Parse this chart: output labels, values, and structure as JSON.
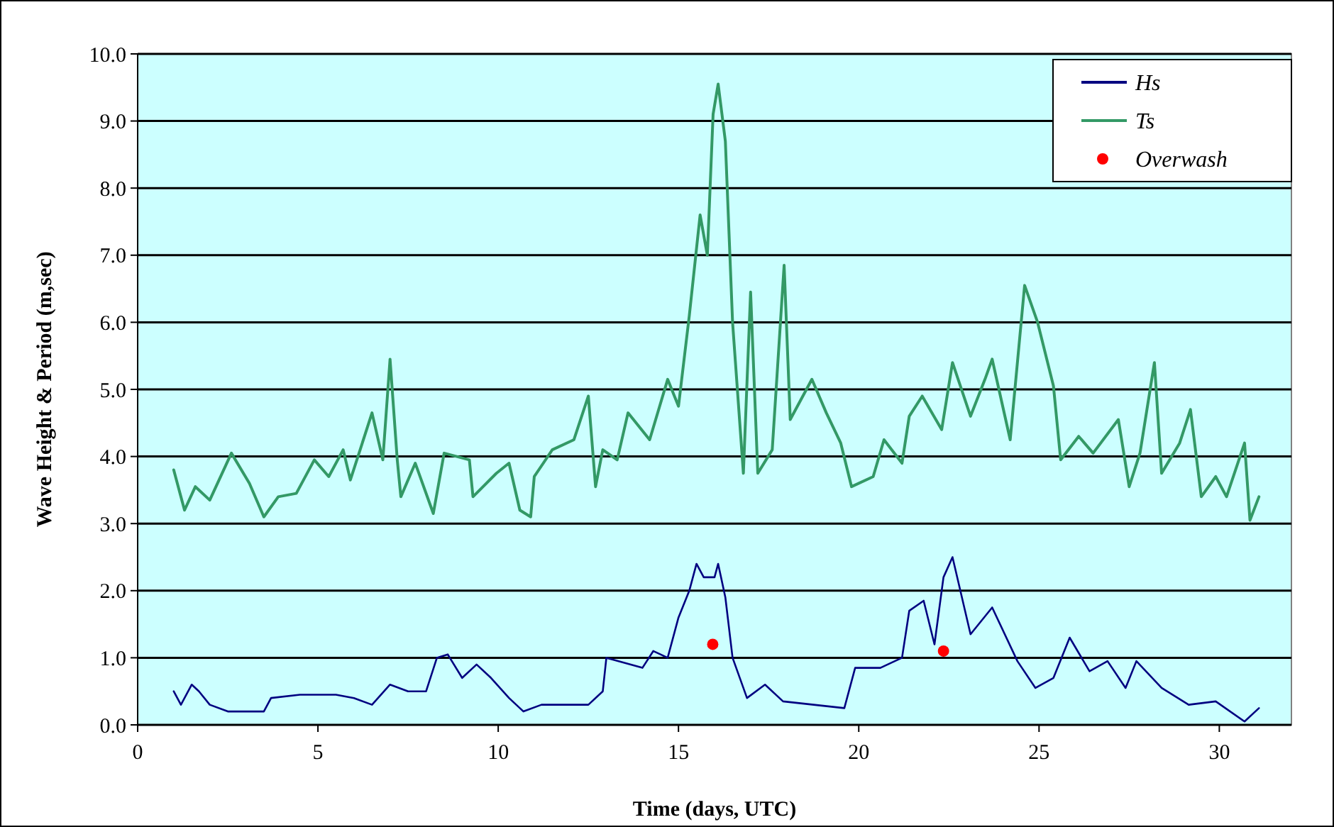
{
  "chart_data": {
    "type": "line",
    "xlabel": "Time (days, UTC)",
    "ylabel": "Wave Height & Period (m,sec)",
    "xlim": [
      0,
      32
    ],
    "xticks": [
      0,
      5,
      10,
      15,
      20,
      25,
      30
    ],
    "ylim": [
      0,
      10
    ],
    "yticks": [
      {
        "value": 0,
        "label": "0.0"
      },
      {
        "value": 1,
        "label": "1.0"
      },
      {
        "value": 2,
        "label": "2.0"
      },
      {
        "value": 3,
        "label": "3.0"
      },
      {
        "value": 4,
        "label": "4.0"
      },
      {
        "value": 5,
        "label": "5.0"
      },
      {
        "value": 6,
        "label": "6.0"
      },
      {
        "value": 7,
        "label": "7.0"
      },
      {
        "value": 8,
        "label": "8.0"
      },
      {
        "value": 9,
        "label": "9.0"
      },
      {
        "value": 10,
        "label": "10.0"
      }
    ],
    "grid": "y",
    "legend": "top right",
    "marker": "none",
    "line_style": "solid",
    "series": [
      {
        "name": "Hs",
        "color": "#000080",
        "x": [
          1.0,
          1.2,
          1.5,
          1.7,
          2.0,
          2.5,
          3.5,
          3.7,
          4.5,
          5.5,
          6.0,
          6.5,
          7.0,
          7.5,
          8.0,
          8.3,
          8.6,
          9.0,
          9.4,
          9.8,
          10.3,
          10.7,
          11.2,
          12.0,
          12.5,
          12.9,
          13.0,
          14.0,
          14.3,
          14.7,
          15.0,
          15.3,
          15.5,
          15.7,
          16.0,
          16.1,
          16.3,
          16.5,
          16.9,
          17.4,
          17.9,
          19.6,
          19.9,
          20.6,
          21.2,
          21.4,
          21.8,
          22.1,
          22.35,
          22.6,
          23.1,
          23.7,
          24.4,
          24.9,
          25.4,
          25.85,
          26.4,
          26.9,
          27.4,
          27.7,
          28.4,
          29.15,
          29.9,
          30.7,
          31.1
        ],
        "values": [
          0.5,
          0.3,
          0.6,
          0.5,
          0.3,
          0.2,
          0.2,
          0.4,
          0.45,
          0.45,
          0.4,
          0.3,
          0.6,
          0.5,
          0.5,
          1.0,
          1.05,
          0.7,
          0.9,
          0.7,
          0.4,
          0.2,
          0.3,
          0.3,
          0.3,
          0.5,
          1.0,
          0.85,
          1.1,
          1.0,
          1.6,
          2.0,
          2.4,
          2.2,
          2.2,
          2.4,
          1.9,
          1.0,
          0.4,
          0.6,
          0.35,
          0.25,
          0.85,
          0.85,
          1.0,
          1.7,
          1.85,
          1.2,
          2.2,
          2.5,
          1.35,
          1.75,
          0.95,
          0.55,
          0.7,
          1.3,
          0.8,
          0.95,
          0.55,
          0.95,
          0.55,
          0.3,
          0.35,
          0.05,
          0.25
        ]
      },
      {
        "name": "Ts",
        "color": "#339966",
        "x": [
          1.0,
          1.3,
          1.6,
          2.0,
          2.6,
          3.1,
          3.5,
          3.9,
          4.4,
          4.9,
          5.3,
          5.7,
          5.9,
          6.5,
          6.8,
          7.0,
          7.2,
          7.3,
          7.7,
          8.2,
          8.5,
          9.2,
          9.3,
          9.95,
          10.3,
          10.6,
          10.9,
          11.0,
          11.5,
          12.1,
          12.5,
          12.7,
          12.9,
          13.3,
          13.6,
          14.2,
          14.7,
          15.0,
          15.3,
          15.6,
          15.8,
          15.96,
          16.1,
          16.3,
          16.5,
          16.8,
          17.0,
          17.2,
          17.6,
          17.93,
          18.1,
          18.7,
          19.1,
          19.5,
          19.8,
          20.4,
          20.7,
          21.2,
          21.4,
          21.76,
          22.3,
          22.6,
          23.1,
          23.5,
          23.7,
          24.2,
          24.6,
          24.96,
          25.4,
          25.6,
          26.1,
          26.5,
          27.2,
          27.5,
          27.8,
          28.2,
          28.4,
          28.9,
          29.2,
          29.5,
          29.9,
          30.2,
          30.7,
          30.85,
          31.1
        ],
        "values": [
          3.8,
          3.2,
          3.55,
          3.35,
          4.05,
          3.6,
          3.1,
          3.4,
          3.45,
          3.95,
          3.7,
          4.1,
          3.65,
          4.65,
          3.95,
          5.45,
          3.95,
          3.4,
          3.9,
          3.15,
          4.05,
          3.95,
          3.4,
          3.75,
          3.9,
          3.2,
          3.1,
          3.7,
          4.1,
          4.25,
          4.9,
          3.55,
          4.1,
          3.95,
          4.65,
          4.25,
          5.15,
          4.75,
          6.1,
          7.6,
          7.0,
          9.1,
          9.55,
          8.7,
          6.0,
          3.75,
          6.45,
          3.75,
          4.1,
          6.85,
          4.55,
          5.15,
          4.65,
          4.2,
          3.55,
          3.7,
          4.25,
          3.9,
          4.6,
          4.9,
          4.4,
          5.4,
          4.6,
          5.15,
          5.45,
          4.25,
          6.55,
          6.0,
          5.05,
          3.95,
          4.3,
          4.05,
          4.55,
          3.55,
          4.05,
          5.4,
          3.75,
          4.2,
          4.7,
          3.4,
          3.7,
          3.4,
          4.2,
          3.05,
          3.4
        ]
      },
      {
        "name": "Overwash",
        "type": "scatter",
        "marker": "circle",
        "color": "#ff0000",
        "x": [
          15.95,
          22.35
        ],
        "values": [
          1.2,
          1.1
        ]
      }
    ]
  }
}
